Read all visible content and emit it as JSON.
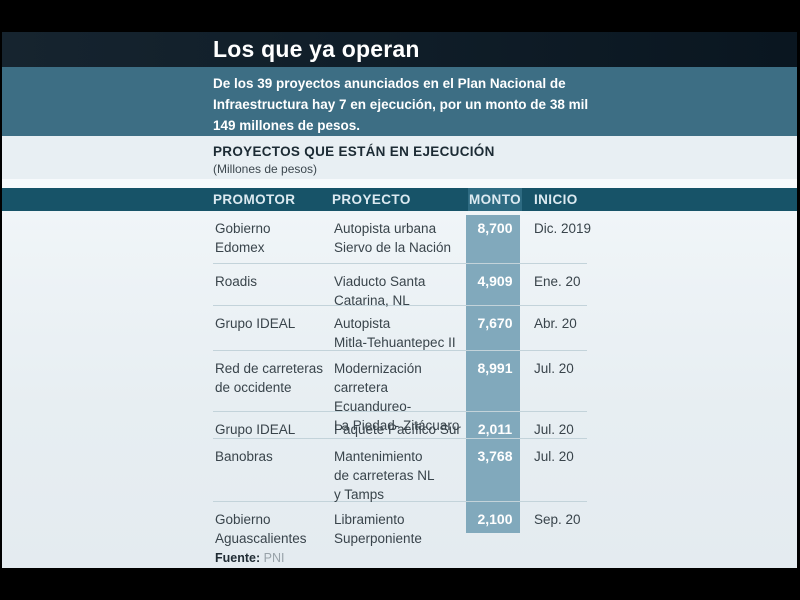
{
  "chart_data": {
    "type": "table",
    "title": "Los que ya operan",
    "subtitle": "De los 39 proyectos anunciados en el Plan Nacional de\nInfraestructura hay 7 en ejecución, por un monto de 38 mil\n149 millones de pesos.",
    "section_heading": "PROYECTOS QUE ESTÁN EN EJECUCIÓN",
    "units_label": "(Millones de pesos)",
    "columns": [
      "PROMOTOR",
      "PROYECTO",
      "MONTO",
      "INICIO"
    ],
    "rows": [
      {
        "promotor": "Gobierno\nEdomex",
        "proyecto": "Autopista urbana\nSiervo de la Nación",
        "monto": "8,700",
        "monto_value": 8700,
        "inicio": "Dic. 2019"
      },
      {
        "promotor": "Roadis",
        "proyecto": "Viaducto Santa\nCatarina, NL",
        "monto": "4,909",
        "monto_value": 4909,
        "inicio": "Ene. 20"
      },
      {
        "promotor": "Grupo IDEAL",
        "proyecto": "Autopista\nMitla-Tehuantepec II",
        "monto": "7,670",
        "monto_value": 7670,
        "inicio": "Abr. 20"
      },
      {
        "promotor": "Red de carreteras\nde occidente",
        "proyecto": "Modernización\ncarretera Ecuandureo-\nLa Piedad- Zitácuaro",
        "monto": "8,991",
        "monto_value": 8991,
        "inicio": "Jul. 20"
      },
      {
        "promotor": "Grupo IDEAL",
        "proyecto": "Paquete Pacífico Sur",
        "monto": "2,011",
        "monto_value": 2011,
        "inicio": "Jul. 20"
      },
      {
        "promotor": "Banobras",
        "proyecto": "Mantenimiento\nde carreteras NL\ny Tamps",
        "monto": "3,768",
        "monto_value": 3768,
        "inicio": "Jul. 20"
      },
      {
        "promotor": "Gobierno\nAguascalientes",
        "proyecto": "Libramiento\nSuperponiente",
        "monto": "2,100",
        "monto_value": 2100,
        "inicio": "Sep. 20"
      }
    ],
    "totals": {
      "proyectos_anunciados": 39,
      "proyectos_en_ejecucion": 7,
      "monto_total_mdp": 38149
    },
    "source_label": "Fuente:",
    "source_value": "PNI"
  },
  "colors": {
    "title_band": "#101e29",
    "subtitle_band": "#3d6e84",
    "section_band": "#e8eff3",
    "header_band": "#175368",
    "header_monto_box": "#2e6b82",
    "monto_strip": "#81a9bc",
    "table_bg": "#e9f0f4",
    "separator": "#c3d3da",
    "frame": "#000000"
  }
}
